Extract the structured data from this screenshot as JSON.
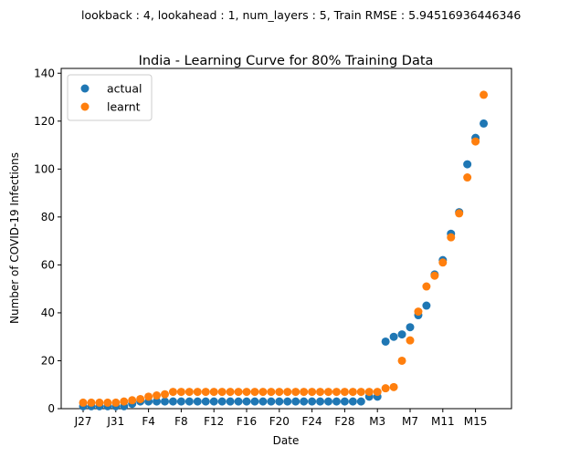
{
  "chart_data": {
    "type": "scatter",
    "suptitle": "lookback : 4, lookahead : 1, num_layers : 5, Train RMSE : 5.94516936446346",
    "title": "India - Learning Curve for 80% Training Data",
    "xlabel": "Date",
    "ylabel": "Number of COVID-19 Infections",
    "ylim": [
      0,
      142
    ],
    "yticks": [
      0,
      20,
      40,
      60,
      80,
      100,
      120,
      140
    ],
    "xtick_labels": [
      "J27",
      "J31",
      "F4",
      "F8",
      "F12",
      "F16",
      "F20",
      "F24",
      "F28",
      "M3",
      "M7",
      "M11",
      "M15"
    ],
    "xtick_index": [
      0,
      4,
      8,
      12,
      16,
      20,
      24,
      28,
      32,
      36,
      40,
      44,
      48
    ],
    "x_count": 50,
    "legend_position": "upper-left",
    "series": [
      {
        "name": "actual",
        "color": "#1f77b4",
        "values": [
          1,
          1,
          1,
          1,
          1,
          1,
          2,
          3,
          3,
          3,
          3,
          3,
          3,
          3,
          3,
          3,
          3,
          3,
          3,
          3,
          3,
          3,
          3,
          3,
          3,
          3,
          3,
          3,
          3,
          3,
          3,
          3,
          3,
          3,
          3,
          5,
          5,
          28,
          30,
          31,
          34,
          39,
          43,
          56,
          62,
          73,
          82,
          102,
          113,
          119
        ]
      },
      {
        "name": "learnt",
        "color": "#ff7f0e",
        "values": [
          2.5,
          2.5,
          2.5,
          2.5,
          2.5,
          3,
          3.5,
          4,
          5,
          5.5,
          6,
          7,
          7,
          7,
          7,
          7,
          7,
          7,
          7,
          7,
          7,
          7,
          7,
          7,
          7,
          7,
          7,
          7,
          7,
          7,
          7,
          7,
          7,
          7,
          7,
          7,
          7,
          8.5,
          9,
          20,
          28.5,
          40.5,
          51,
          55.5,
          61,
          71.5,
          81.5,
          96.5,
          111.5,
          131
        ]
      }
    ]
  }
}
